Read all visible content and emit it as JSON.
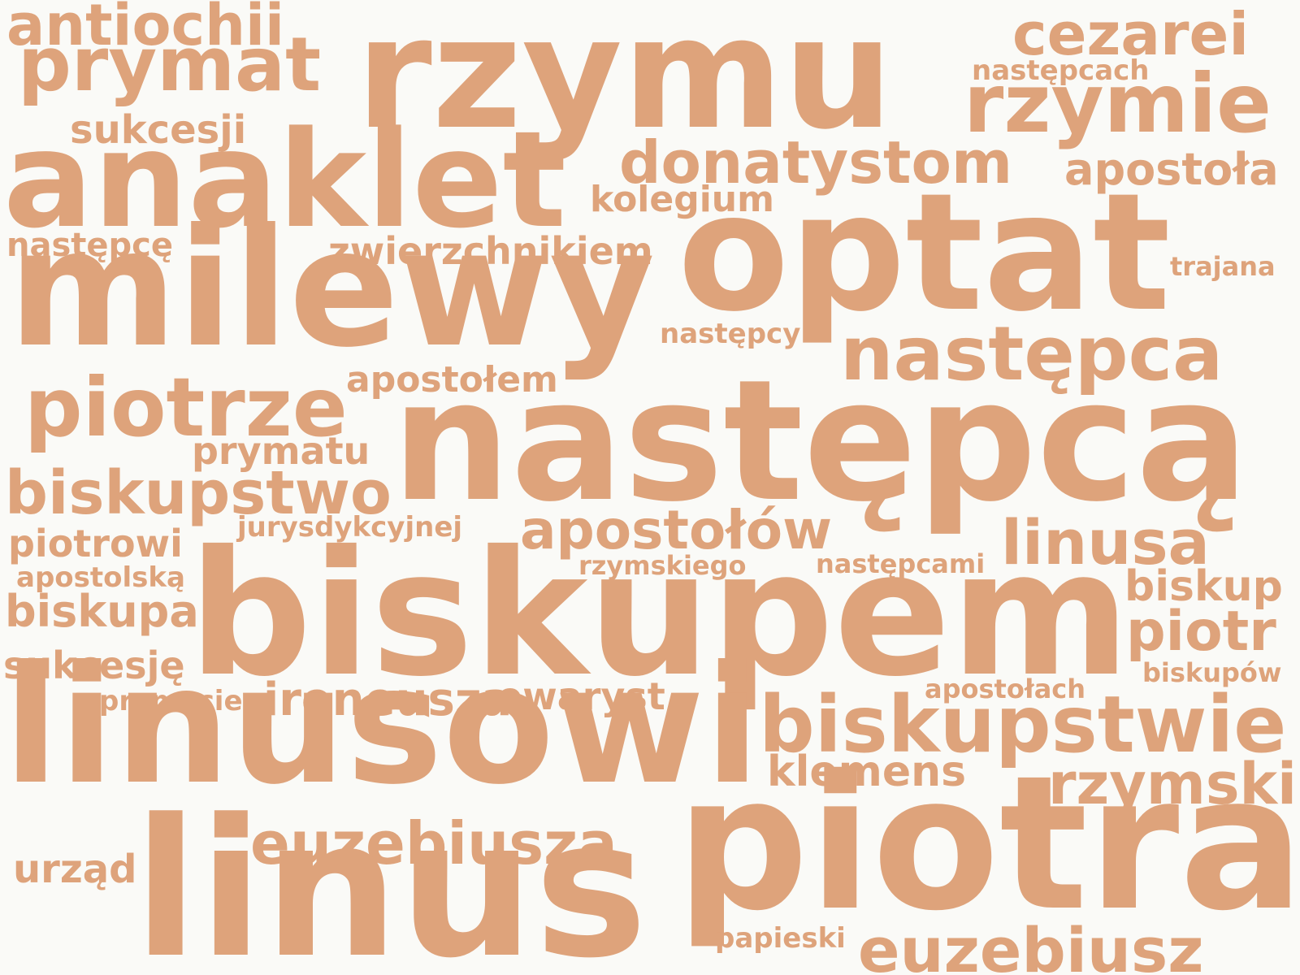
{
  "word_cloud": {
    "color": "#dea37b",
    "background": "#fafaf7",
    "words": {
      "rzymu": "rzymu",
      "antiochii": "antiochii",
      "prymat": "prymat",
      "cezarei": "cezarei",
      "nastepcach": "następcach",
      "rzymie": "rzymie",
      "sukcesji": "sukcesji",
      "anaklet": "anaklet",
      "donatystom": "donatystom",
      "apostola": "apostoła",
      "kolegium": "kolegium",
      "nastepce": "następcę",
      "zwierzchnikiem": "zwierzchnikiem",
      "milewy": "milewy",
      "optat": "optat",
      "trajana": "trajana",
      "nastepcy": "następcy",
      "nastepca_a": "następca",
      "apostolem": "apostołem",
      "piotrze": "piotrze",
      "nastepca_b": "następcą",
      "prymatu": "prymatu",
      "biskupstwo": "biskupstwo",
      "jurysdykcyjnej": "jurysdykcyjnej",
      "apostolow": "apostołów",
      "linusa": "linusa",
      "piotrowi": "piotrowi",
      "rzymskiego": "rzymskiego",
      "nastepcami": "następcami",
      "apostolska": "apostolską",
      "biskup": "biskup",
      "biskupa": "biskupa",
      "biskupem": "biskupem",
      "piotr": "piotr",
      "sukcesje": "sukcesję",
      "biskupow": "biskupów",
      "apostolach": "apostołach",
      "prymacie": "prymacie",
      "ireneusza": "ireneusza",
      "ewaryst": "ewaryst",
      "linusowi": "linusowi",
      "biskupstwie": "biskupstwie",
      "klemens": "klemens",
      "rzymski": "rzymski",
      "euzebiusza": "euzebiusza",
      "urzad": "urząd",
      "linus": "linus",
      "piotra": "piotra",
      "papieski": "papieski",
      "euzebiusz": "euzebiusz"
    }
  }
}
